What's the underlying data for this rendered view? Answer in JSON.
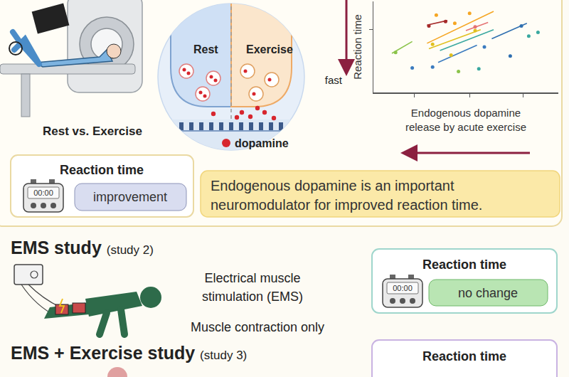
{
  "study1": {
    "scanner_label": "Rest vs. Exercise",
    "synapse": {
      "left": "Rest",
      "right": "Exercise",
      "legend": "dopamine"
    },
    "arrow_label": "fast",
    "result": {
      "title": "Reaction time",
      "display": "00:00",
      "outcome": "improvement"
    },
    "conclusion": [
      "Endogenous dopamine is an important",
      "neuromodulator for improved reaction time."
    ]
  },
  "study2": {
    "title": "EMS study",
    "subtitle": "(study 2)",
    "description": [
      "Electrical muscle",
      "stimulation (EMS)"
    ],
    "note": "Muscle contraction only",
    "result": {
      "title": "Reaction time",
      "display": "00:00",
      "outcome": "no change"
    }
  },
  "study3": {
    "title": "EMS + Exercise study",
    "subtitle": "(study 3)",
    "result": {
      "title": "Reaction time"
    }
  },
  "chart_data": {
    "type": "scatter",
    "ylabel": "Reaction time",
    "xlabel": [
      "Endogenous dopamine",
      "release by acute exercise"
    ],
    "xlim": [
      0,
      10
    ],
    "ylim": [
      0,
      10
    ],
    "xticks": [
      2.2,
      5.2,
      8.1
    ],
    "yticks": [
      6.9
    ],
    "tick_labels": false,
    "grid": false,
    "series": [
      {
        "color": "#8bc34a",
        "x": [
          1.2,
          4.6
        ],
        "values": [
          4.4,
          2.3
        ],
        "fit_x": [
          1.0,
          2.1
        ],
        "fit_values": [
          4.3,
          5.6
        ]
      },
      {
        "color": "#3b7bbf",
        "x": [
          2.1,
          3.2,
          6.0
        ],
        "values": [
          2.7,
          2.8,
          5.0
        ],
        "fit_x": [
          3.5,
          5.6
        ],
        "fit_values": [
          3.3,
          5.2
        ]
      },
      {
        "color": "#f5a623",
        "x": [
          3.4,
          4.4,
          5.2
        ],
        "values": [
          8.5,
          7.6,
          8.7
        ],
        "fit_x": [
          2.9,
          6.5
        ],
        "fit_values": [
          5.4,
          8.9
        ]
      },
      {
        "color": "#a52a2a",
        "x": [
          3.0,
          3.9
        ],
        "values": [
          7.3,
          7.8
        ],
        "fit_x": [
          2.9,
          4.0
        ],
        "fit_values": [
          7.4,
          7.9
        ]
      },
      {
        "color": "#e0c020",
        "x": [
          3.2,
          4.2,
          5.5
        ],
        "values": [
          5.3,
          4.1,
          6.8
        ],
        "fit_x": [
          3.0,
          5.8
        ],
        "fit_values": [
          4.8,
          6.9
        ]
      },
      {
        "color": "#3aa8a0",
        "x": [
          5.7,
          8.4,
          8.9
        ],
        "values": [
          2.6,
          6.2,
          6.6
        ],
        "fit_x": [
          3.6,
          6.5
        ],
        "fit_values": [
          4.6,
          6.9
        ]
      },
      {
        "color": "#2f6fb0",
        "x": [
          7.4,
          8.0
        ],
        "values": [
          4.0,
          7.3
        ],
        "fit_x": [
          6.4,
          8.3
        ],
        "fit_values": [
          5.9,
          7.6
        ]
      },
      {
        "color": "#e57373",
        "x": [
          5.5
        ],
        "values": [
          7.2
        ],
        "fit_x": [
          5.0,
          6.2
        ],
        "fit_values": [
          6.8,
          7.7
        ]
      }
    ]
  }
}
